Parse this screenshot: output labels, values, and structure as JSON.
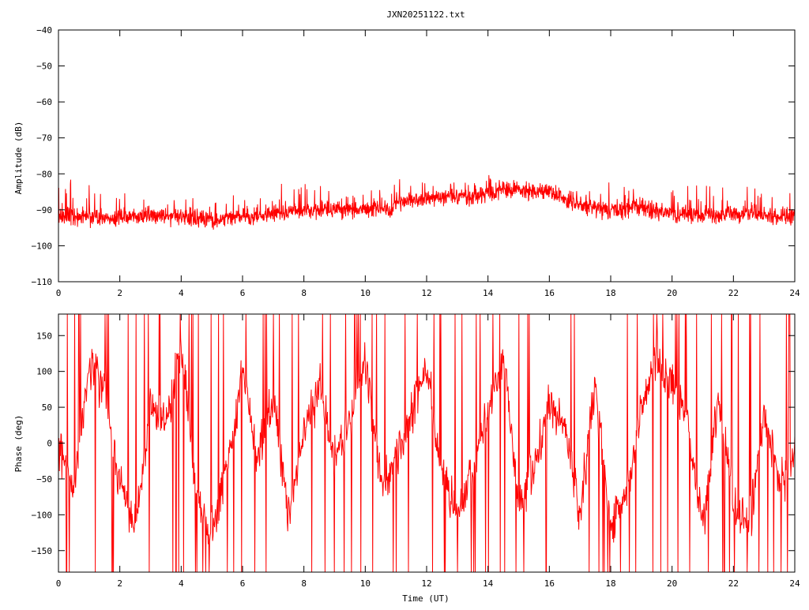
{
  "title": "JXN20251122.txt",
  "x_axis": {
    "label": "Time (UT)",
    "ticks": [
      0,
      2,
      4,
      6,
      8,
      10,
      12,
      14,
      16,
      18,
      20,
      22,
      24
    ],
    "range": [
      0,
      24
    ]
  },
  "colors": {
    "series": "#ff0000",
    "axes": "#000000",
    "background": "#ffffff"
  },
  "chart_data": [
    {
      "type": "line",
      "name": "amplitude-panel",
      "title": "JXN20251122.txt",
      "xlabel": "",
      "ylabel": "Amplitude (dB)",
      "xlim": [
        0,
        24
      ],
      "ylim": [
        -110,
        -40
      ],
      "x_ticks": [
        0,
        2,
        4,
        6,
        8,
        10,
        12,
        14,
        16,
        18,
        20,
        22,
        24
      ],
      "y_ticks": [
        -40,
        -50,
        -60,
        -70,
        -80,
        -90,
        -100,
        -110
      ],
      "grid": false,
      "series_color": "#ff0000",
      "envelope": {
        "x": [
          0,
          1,
          2,
          3,
          4,
          4.5,
          5,
          6,
          7,
          8,
          9,
          10,
          10.9,
          11,
          12,
          13,
          13.4,
          14,
          15,
          16,
          16.5,
          17,
          18,
          19,
          20,
          21,
          22,
          23,
          24
        ],
        "mean": [
          -92,
          -92,
          -92.5,
          -91.5,
          -92,
          -92.5,
          -93,
          -92,
          -91,
          -90,
          -90,
          -90,
          -90,
          -87.5,
          -87,
          -86,
          -87,
          -85,
          -84.5,
          -85,
          -87,
          -89,
          -90,
          -89.5,
          -91,
          -92,
          -91,
          -91.5,
          -92
        ],
        "spread": [
          3.5,
          3.5,
          3.5,
          3.5,
          3.5,
          3.5,
          3.5,
          3.5,
          3.5,
          3.5,
          3.5,
          3.5,
          3.5,
          3.5,
          3.5,
          3.5,
          3.5,
          3.5,
          3.5,
          3.5,
          3.5,
          3.5,
          3.5,
          3.5,
          3.5,
          3.5,
          3.5,
          3.5,
          3.5
        ],
        "max": [
          -81,
          -82,
          -85,
          -84,
          -85,
          -86,
          -88,
          -84,
          -83,
          -81,
          -82,
          -84,
          -84,
          -81,
          -82,
          -81,
          -83,
          -80,
          -81,
          -83,
          -84,
          -84,
          -82,
          -82,
          -83,
          -83,
          -84,
          -83,
          -84
        ]
      }
    },
    {
      "type": "line",
      "name": "phase-panel",
      "xlabel": "Time (UT)",
      "ylabel": "Phase (deg)",
      "xlim": [
        0,
        24
      ],
      "ylim": [
        -180,
        180
      ],
      "x_ticks": [
        0,
        2,
        4,
        6,
        8,
        10,
        12,
        14,
        16,
        18,
        20,
        22,
        24
      ],
      "y_ticks": [
        150,
        100,
        50,
        0,
        -50,
        -100,
        -150
      ],
      "grid": false,
      "series_color": "#ff0000",
      "trend": {
        "x": [
          0,
          0.5,
          1,
          1.5,
          2,
          2.5,
          3,
          3.5,
          4,
          4.5,
          5,
          5.5,
          6,
          6.5,
          7,
          7.5,
          8,
          8.5,
          9,
          9.5,
          10,
          10.5,
          11,
          11.5,
          12,
          12.5,
          13,
          13.5,
          14,
          14.5,
          15,
          15.5,
          16,
          16.5,
          17,
          17.5,
          18,
          18.5,
          19,
          19.5,
          20,
          20.5,
          21,
          21.5,
          22,
          22.5,
          23,
          23.5,
          24
        ],
        "y": [
          0,
          -60,
          100,
          80,
          -60,
          -120,
          60,
          20,
          140,
          -80,
          -120,
          -40,
          100,
          -20,
          60,
          -100,
          20,
          80,
          -20,
          40,
          120,
          -60,
          -20,
          40,
          100,
          -40,
          -100,
          -40,
          40,
          120,
          -80,
          -40,
          60,
          20,
          -100,
          80,
          -120,
          -60,
          40,
          120,
          80,
          40,
          -120,
          60,
          -80,
          -120,
          40,
          -60,
          -20
        ],
        "noise": 45,
        "wrap_rate": 0.12
      }
    }
  ]
}
